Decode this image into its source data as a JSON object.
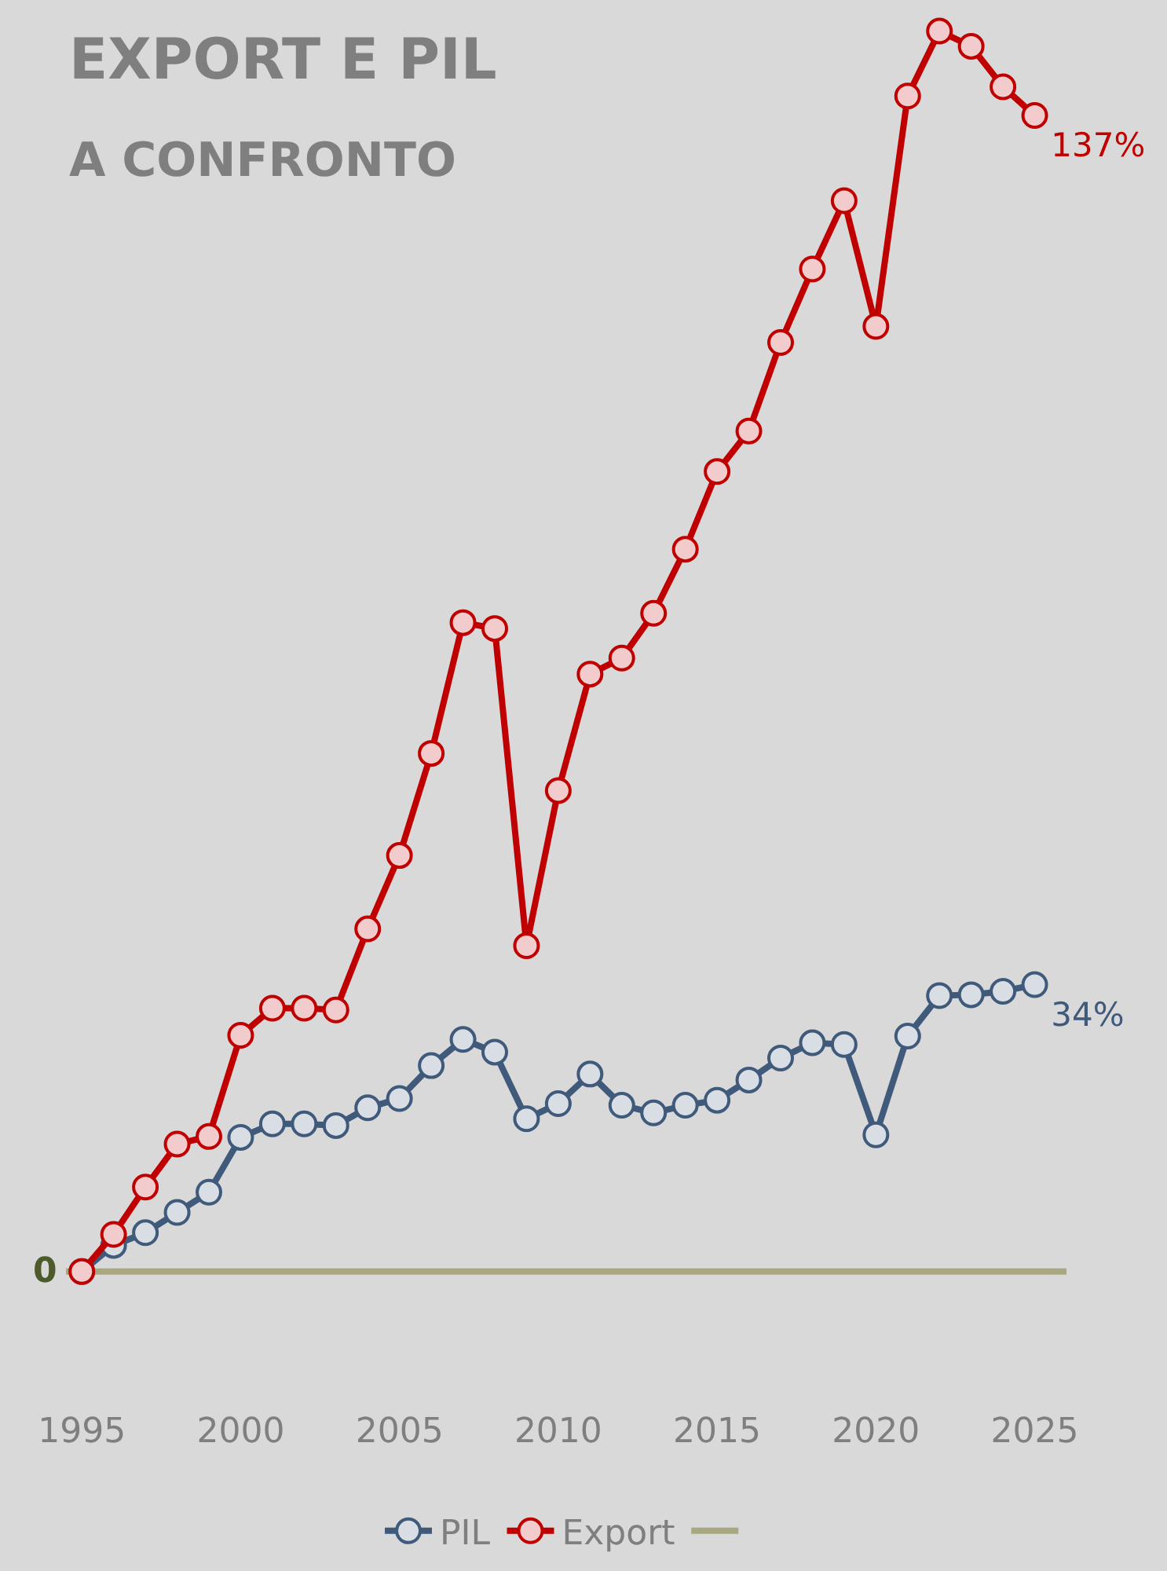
{
  "chart_data": {
    "type": "line",
    "title": "EXPORT E PIL",
    "subtitle": "A CONFRONTO",
    "x": [
      1995,
      1996,
      1997,
      1998,
      1999,
      2000,
      2001,
      2002,
      2003,
      2004,
      2005,
      2006,
      2007,
      2008,
      2009,
      2010,
      2011,
      2012,
      2013,
      2014,
      2015,
      2016,
      2017,
      2018,
      2019,
      2020,
      2021,
      2022,
      2023,
      2024,
      2025
    ],
    "series": [
      {
        "name": "PIL",
        "color": "#3f5a7a",
        "values": [
          0,
          3.1,
          4.6,
          7,
          9.4,
          15.9,
          17.5,
          17.5,
          17.3,
          19.4,
          20.5,
          24.4,
          27.5,
          26,
          18.1,
          19.9,
          23.4,
          19.7,
          18.8,
          19.7,
          20.3,
          22.7,
          25.3,
          27.1,
          26.9,
          16.2,
          27.9,
          32.7,
          32.8,
          33.2,
          34
        ],
        "value_labels": [
          null,
          null,
          null,
          null,
          null,
          null,
          null,
          null,
          null,
          null,
          null,
          null,
          null,
          null,
          null,
          null,
          null,
          null,
          null,
          null,
          null,
          null,
          null,
          null,
          null,
          null,
          null,
          null,
          null,
          null,
          "34%"
        ]
      },
      {
        "name": "Export",
        "color": "#c00000",
        "values": [
          0,
          4.4,
          10,
          15.1,
          16,
          28,
          31.2,
          31.2,
          31,
          40.6,
          49.3,
          61.4,
          76.9,
          76.2,
          38.6,
          57,
          70.8,
          72.7,
          78,
          85.6,
          94.8,
          99.6,
          110.1,
          118.8,
          126.9,
          112,
          139.3,
          147,
          145.2,
          140.4,
          137
        ],
        "value_labels": [
          null,
          null,
          null,
          null,
          null,
          null,
          null,
          null,
          null,
          null,
          null,
          null,
          null,
          null,
          null,
          null,
          null,
          null,
          null,
          null,
          null,
          null,
          null,
          null,
          null,
          null,
          null,
          null,
          null,
          null,
          "137%"
        ]
      },
      {
        "color": "#a9a77f",
        "x": [
          1994.5,
          2026
        ],
        "values": [
          0,
          0
        ],
        "marker": "none"
      }
    ],
    "xlim": [
      1994.5,
      2026
    ],
    "xticks": [
      1995,
      2000,
      2005,
      2010,
      2015,
      2020,
      2025
    ],
    "annotations": [
      "0"
    ],
    "marker": "circle",
    "grid": false,
    "legend": "bottom"
  }
}
